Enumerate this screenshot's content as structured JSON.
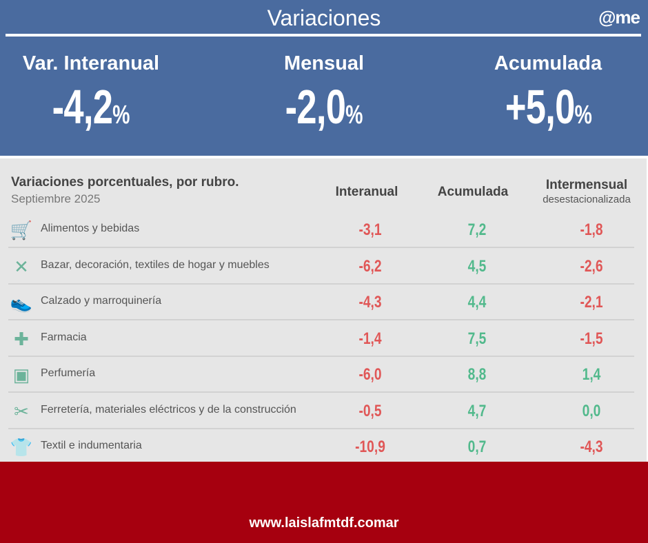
{
  "header": {
    "title": "Variaciones",
    "logo": "came"
  },
  "kpis": [
    {
      "label": "Var. Interanual",
      "value": "-4,2",
      "unit": "%"
    },
    {
      "label": "Mensual",
      "value": "-2,0",
      "unit": "%"
    },
    {
      "label": "Acumulada",
      "value": "+5,0",
      "unit": "%"
    }
  ],
  "table": {
    "title": "Variaciones porcentuales, por rubro.",
    "subtitle": "Septiembre 2025",
    "columns": [
      "Interanual",
      "Acumulada",
      "Intermensual"
    ],
    "column_sub": "desestacionalizada",
    "rows": [
      {
        "name": "Alimentos y bebidas",
        "icon": "groceries-icon",
        "i": "-3,1",
        "a": "7,2",
        "m": "-1,8"
      },
      {
        "name": "Bazar, decoración, textiles de hogar y muebles",
        "icon": "tableware-icon",
        "i": "-6,2",
        "a": "4,5",
        "m": "-2,6"
      },
      {
        "name": "Calzado y marroquinería",
        "icon": "shoe-icon",
        "i": "-4,3",
        "a": "4,4",
        "m": "-2,1"
      },
      {
        "name": "Farmacia",
        "icon": "cross-icon",
        "i": "-1,4",
        "a": "7,5",
        "m": "-1,5"
      },
      {
        "name": "Perfumería",
        "icon": "perfume-icon",
        "i": "-6,0",
        "a": "8,8",
        "m": "1,4"
      },
      {
        "name": "Ferretería, materiales eléctricos y de la construcción",
        "icon": "tools-icon",
        "i": "-0,5",
        "a": "4,7",
        "m": "0,0"
      },
      {
        "name": "Textil e indumentaria",
        "icon": "shirt-icon",
        "i": "-10,9",
        "a": "0,7",
        "m": "-4,3"
      }
    ]
  },
  "footer": {
    "url": "www.laislafmtdf.comar"
  }
}
